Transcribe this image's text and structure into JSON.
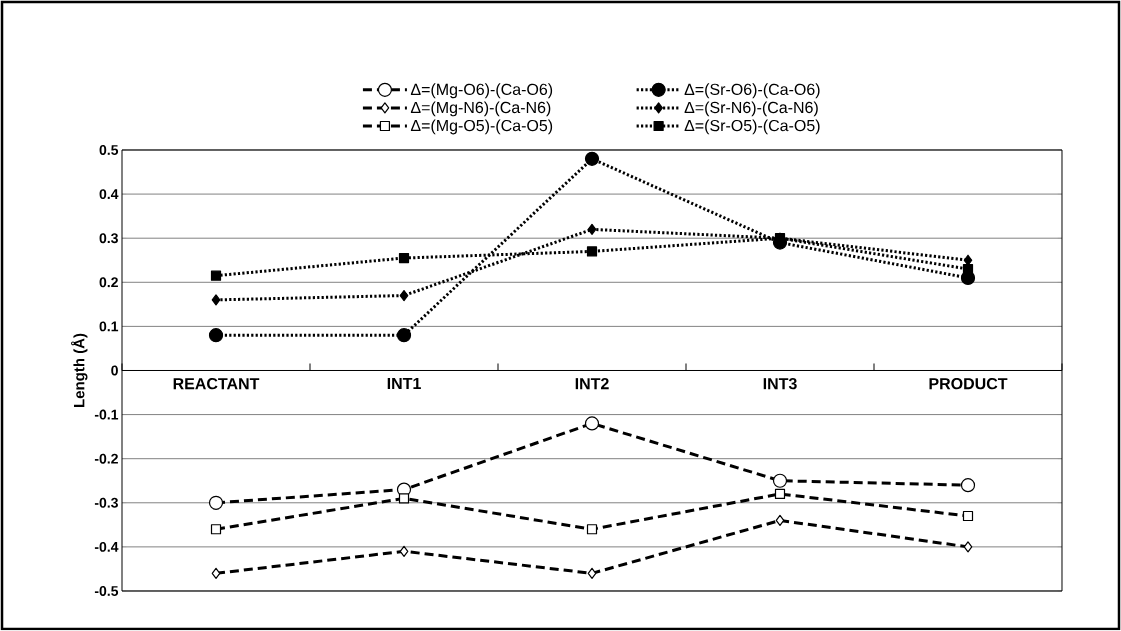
{
  "chart_data": {
    "type": "line",
    "ylabel": "Length (Å)",
    "categories": [
      "REACTANT",
      "INT1",
      "INT2",
      "INT3",
      "PRODUCT"
    ],
    "ylim": [
      -0.5,
      0.5
    ],
    "yticks": [
      -0.5,
      -0.4,
      -0.3,
      -0.2,
      -0.1,
      0,
      0.1,
      0.2,
      0.3,
      0.4,
      0.5
    ],
    "grid": "y",
    "legend": "top",
    "series": [
      {
        "name": "Δ=(Mg-O6)-(Ca-O6)",
        "color": "#000000",
        "marker": "circle",
        "line_style": "dashed",
        "values": [
          -0.3,
          -0.27,
          -0.12,
          -0.25,
          -0.26
        ]
      },
      {
        "name": "Δ=(Sr-O6)-(Ca-O6)",
        "color": "#000000",
        "marker": "circle",
        "line_style": "dotted",
        "values": [
          0.08,
          0.08,
          0.48,
          0.29,
          0.21
        ]
      },
      {
        "name": "Δ=(Mg-N6)-(Ca-N6)",
        "color": "#000000",
        "marker": "diamond",
        "line_style": "dashed",
        "values": [
          -0.46,
          -0.41,
          -0.46,
          -0.34,
          -0.4
        ]
      },
      {
        "name": "Δ=(Sr-N6)-(Ca-N6)",
        "color": "#000000",
        "marker": "diamond",
        "line_style": "dotted",
        "values": [
          0.16,
          0.17,
          0.32,
          0.3,
          0.25
        ]
      },
      {
        "name": "Δ=(Mg-O5)-(Ca-O5)",
        "color": "#000000",
        "marker": "square",
        "line_style": "dashed",
        "values": [
          -0.36,
          -0.29,
          -0.36,
          -0.28,
          -0.33
        ]
      },
      {
        "name": "Δ=(Sr-O5)-(Ca-O5)",
        "color": "#000000",
        "marker": "square",
        "line_style": "dotted",
        "values": [
          0.215,
          0.255,
          0.27,
          0.3,
          0.23
        ]
      }
    ]
  }
}
